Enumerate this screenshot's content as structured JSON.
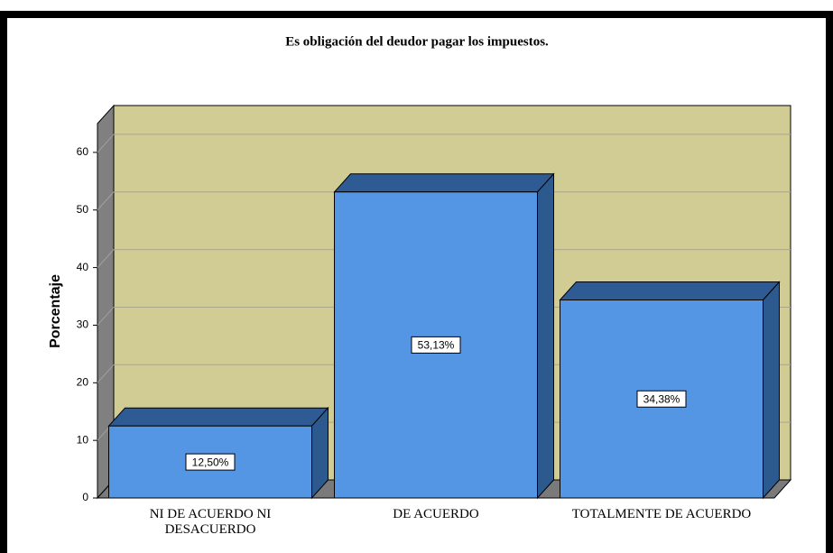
{
  "chart_data": {
    "type": "bar3d",
    "title": "Es obligación del deudor pagar los impuestos.",
    "y_label": "Porcentaje",
    "categories": [
      "NI DE ACUERDO NI DESACUERDO",
      "DE ACUERDO",
      "TOTALMENTE DE ACUERDO"
    ],
    "values": [
      12.5,
      53.13,
      34.38
    ],
    "value_labels": [
      "12,50%",
      "53,13%",
      "34,38%"
    ],
    "color": "#5495e4",
    "ylim": [
      0,
      65
    ],
    "yticks": [
      0,
      10,
      20,
      30,
      40,
      50,
      60
    ],
    "grid": true
  }
}
